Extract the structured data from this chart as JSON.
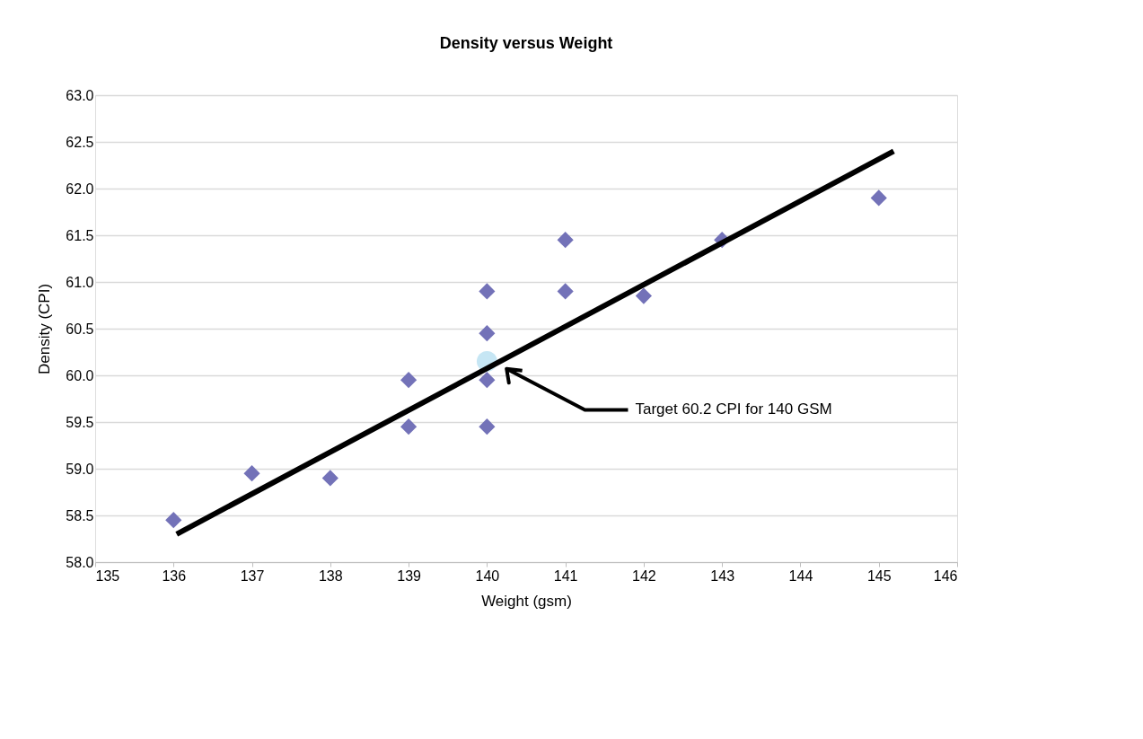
{
  "chart_data": {
    "type": "scatter",
    "title": "Density versus Weight",
    "xlabel": "Weight (gsm)",
    "ylabel": "Density (CPI)",
    "series": [
      {
        "color": "#7372b8",
        "marker": "diamond",
        "x": [
          136,
          137,
          138,
          139,
          139,
          140,
          140,
          140,
          140,
          141,
          141,
          142,
          143,
          145
        ],
        "values": [
          58.45,
          58.95,
          58.9,
          59.95,
          59.45,
          60.9,
          60.45,
          59.95,
          59.45,
          61.45,
          60.9,
          60.85,
          61.45,
          61.9
        ]
      },
      {
        "color": "#c6e6f4",
        "marker": "circle",
        "x": [
          140
        ],
        "values": [
          60.15
        ]
      },
      {
        "type": "line",
        "color": "#000000",
        "x": [
          136.04,
          145.19
        ],
        "values": [
          58.3,
          62.4
        ]
      }
    ],
    "annotations": [
      "Target 60.2 CPI for 140 GSM"
    ],
    "xlim": [
      135,
      146
    ],
    "xticks": [
      135,
      136,
      137,
      138,
      139,
      140,
      141,
      142,
      143,
      144,
      145,
      146
    ],
    "ylim": [
      58.0,
      63.0
    ],
    "yticks": [
      {
        "value": 58.0,
        "label": "58.0"
      },
      {
        "value": 58.5,
        "label": "58.5"
      },
      {
        "value": 59.0,
        "label": "59.0"
      },
      {
        "value": 59.5,
        "label": "59.5"
      },
      {
        "value": 60.0,
        "label": "60.0"
      },
      {
        "value": 60.5,
        "label": "60.5"
      },
      {
        "value": 61.0,
        "label": "61.0"
      },
      {
        "value": 61.5,
        "label": "61.5"
      },
      {
        "value": 62.0,
        "label": "62.0"
      },
      {
        "value": 62.5,
        "label": "62.5"
      },
      {
        "value": 63.0,
        "label": "63.0"
      }
    ],
    "grid": "y"
  }
}
